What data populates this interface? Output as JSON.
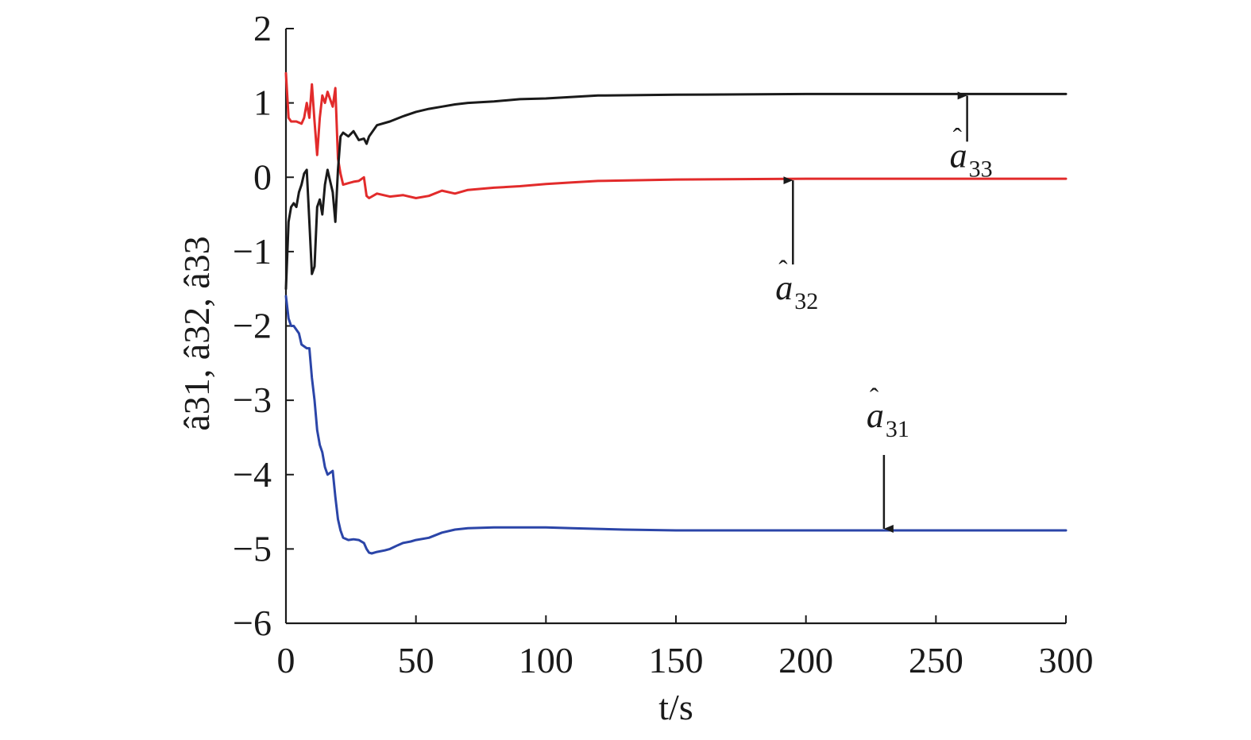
{
  "chart_data": {
    "type": "line",
    "xlabel": "t/s",
    "ylabel": "â31, â32, â33",
    "xlim": [
      0,
      300
    ],
    "ylim": [
      -6,
      2
    ],
    "xticks": [
      "0",
      "50",
      "100",
      "150",
      "200",
      "250",
      "300"
    ],
    "yticks": [
      "2",
      "1",
      "0",
      "−1",
      "−2",
      "−3",
      "−4",
      "−5",
      "−6"
    ],
    "grid": false,
    "colors": {
      "a31": "#2b45a8",
      "a32": "#e22b2b",
      "a33": "#1a1a1a",
      "axis": "#1a1a1a"
    },
    "series": [
      {
        "name": "â31",
        "color": "#2b45a8",
        "x": [
          0,
          1,
          2,
          3,
          5,
          6,
          8,
          9,
          10,
          11,
          12,
          13,
          14,
          15,
          16,
          18,
          19,
          20,
          21,
          22,
          24,
          26,
          28,
          30,
          31,
          32,
          33,
          35,
          38,
          40,
          43,
          45,
          48,
          50,
          55,
          60,
          65,
          70,
          80,
          90,
          100,
          110,
          120,
          130,
          150,
          200,
          230,
          300
        ],
        "y": [
          -1.6,
          -1.9,
          -2.0,
          -2.0,
          -2.1,
          -2.25,
          -2.3,
          -2.3,
          -2.7,
          -3.0,
          -3.4,
          -3.6,
          -3.7,
          -3.9,
          -4.0,
          -3.95,
          -4.3,
          -4.6,
          -4.75,
          -4.85,
          -4.88,
          -4.87,
          -4.88,
          -4.92,
          -5.0,
          -5.05,
          -5.06,
          -5.04,
          -5.02,
          -5.0,
          -4.95,
          -4.92,
          -4.9,
          -4.88,
          -4.85,
          -4.78,
          -4.74,
          -4.72,
          -4.71,
          -4.71,
          -4.71,
          -4.72,
          -4.73,
          -4.74,
          -4.75,
          -4.75,
          -4.75,
          -4.75
        ]
      },
      {
        "name": "â32",
        "color": "#e22b2b",
        "x": [
          0,
          1,
          2,
          4,
          6,
          7,
          8,
          9,
          10,
          11,
          12,
          13,
          14,
          15,
          16,
          17,
          18,
          19,
          20,
          21,
          22,
          24,
          26,
          28,
          30,
          31,
          32,
          35,
          40,
          45,
          50,
          55,
          60,
          65,
          70,
          80,
          90,
          100,
          110,
          120,
          150,
          200,
          300
        ],
        "y": [
          1.4,
          0.8,
          0.75,
          0.75,
          0.72,
          0.8,
          1.0,
          0.8,
          1.25,
          0.75,
          0.3,
          0.8,
          1.1,
          1.0,
          1.15,
          1.05,
          0.95,
          1.2,
          0.25,
          0.05,
          -0.1,
          -0.08,
          -0.06,
          -0.05,
          0.0,
          -0.25,
          -0.28,
          -0.22,
          -0.26,
          -0.24,
          -0.28,
          -0.25,
          -0.18,
          -0.22,
          -0.17,
          -0.14,
          -0.12,
          -0.09,
          -0.07,
          -0.05,
          -0.03,
          -0.02,
          -0.02
        ]
      },
      {
        "name": "â33",
        "color": "#1a1a1a",
        "x": [
          0,
          1,
          2,
          3,
          4,
          5,
          6,
          7,
          8,
          9,
          10,
          11,
          12,
          13,
          14,
          15,
          16,
          17,
          18,
          19,
          20,
          21,
          22,
          24,
          26,
          28,
          30,
          31,
          32,
          35,
          40,
          45,
          50,
          55,
          60,
          65,
          70,
          80,
          90,
          100,
          110,
          120,
          150,
          200,
          300
        ],
        "y": [
          -1.5,
          -0.6,
          -0.4,
          -0.35,
          -0.4,
          -0.2,
          -0.1,
          0.05,
          0.1,
          -0.6,
          -1.3,
          -1.2,
          -0.4,
          -0.3,
          -0.5,
          -0.1,
          0.1,
          -0.05,
          -0.2,
          -0.6,
          0.1,
          0.55,
          0.6,
          0.55,
          0.62,
          0.5,
          0.52,
          0.45,
          0.55,
          0.7,
          0.75,
          0.82,
          0.88,
          0.92,
          0.95,
          0.98,
          1.0,
          1.02,
          1.05,
          1.06,
          1.08,
          1.1,
          1.11,
          1.12,
          1.12
        ]
      }
    ],
    "annotations": [
      {
        "series": "â33",
        "base": "a",
        "sub": "33",
        "x": 262,
        "y": 1.12
      },
      {
        "series": "â32",
        "base": "a",
        "sub": "32",
        "x": 195,
        "y": -0.02
      },
      {
        "series": "â31",
        "base": "a",
        "sub": "31",
        "x": 230,
        "y": -4.75
      }
    ]
  }
}
